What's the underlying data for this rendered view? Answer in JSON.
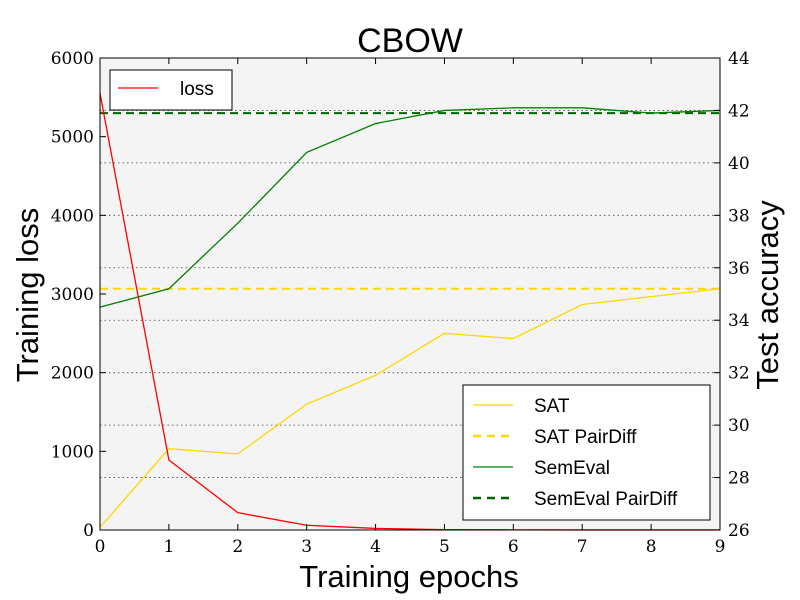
{
  "chart_data": {
    "type": "line",
    "title": "CBOW",
    "xlabel": "Training epochs",
    "ylabel_left": "Training loss",
    "ylabel_right": "Test accuracy",
    "x": [
      0,
      1,
      2,
      3,
      4,
      5,
      6,
      7,
      8,
      9
    ],
    "x_ticks": [
      "0",
      "1",
      "2",
      "3",
      "4",
      "5",
      "6",
      "7",
      "8",
      "9"
    ],
    "xlim": [
      0,
      9
    ],
    "ylim_left": [
      0,
      6000
    ],
    "ylim_right": [
      26,
      44
    ],
    "y_ticks_left": [
      "0",
      "1000",
      "2000",
      "3000",
      "4000",
      "5000",
      "6000"
    ],
    "y_ticks_right": [
      "26",
      "28",
      "30",
      "32",
      "34",
      "36",
      "38",
      "40",
      "42",
      "44"
    ],
    "grid": "horizontal dotted, right axis",
    "loss_series": {
      "name": "loss",
      "axis": "left",
      "color": "#ff0000",
      "style": "solid",
      "values": [
        5550,
        890,
        220,
        60,
        20,
        5,
        2,
        1,
        1,
        1
      ]
    },
    "accuracy_series": [
      {
        "name": "SAT",
        "axis": "right",
        "color": "#ffd700",
        "style": "solid",
        "values": [
          26.1,
          29.1,
          28.9,
          30.8,
          31.9,
          33.5,
          33.3,
          34.6,
          34.9,
          35.2
        ]
      },
      {
        "name": "SAT PairDiff",
        "axis": "right",
        "color": "#ffd700",
        "style": "dashed",
        "constant": 35.2
      },
      {
        "name": "SemEval",
        "axis": "right",
        "color": "#008000",
        "style": "solid",
        "values": [
          34.5,
          35.2,
          37.7,
          40.4,
          41.5,
          42.0,
          42.1,
          42.1,
          41.9,
          42.0
        ]
      },
      {
        "name": "SemEval PairDiff",
        "axis": "right",
        "color": "#006400",
        "style": "dashed",
        "constant": 41.9
      }
    ],
    "legend_left": {
      "placement": "top-left",
      "entries": [
        "loss"
      ]
    },
    "legend_right": {
      "placement": "bottom-right",
      "entries": [
        "SAT",
        "SAT PairDiff",
        "SemEval",
        "SemEval PairDiff"
      ]
    },
    "plot_background": "#f4f4f4"
  }
}
